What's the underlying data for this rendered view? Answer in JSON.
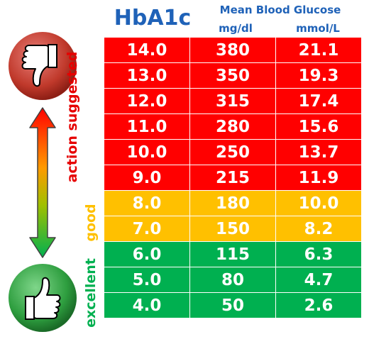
{
  "header": {
    "title": "HbA1c",
    "subtitle": "Mean Blood Glucose",
    "unit_mgdl": "mg/dl",
    "unit_mmol": "mmol/L"
  },
  "labels": {
    "action": "action suggested",
    "good": "good",
    "excellent": "excellent"
  },
  "icons": {
    "top": "thumbs-down-icon",
    "bottom": "thumbs-up-icon",
    "arrow": "double-arrow-icon"
  },
  "colors": {
    "action": "#ff0000",
    "good": "#ffc000",
    "excellent": "#00b050",
    "header": "#1f62b8"
  },
  "rows": [
    {
      "hba1c": "14.0",
      "mgdl": "380",
      "mmol": "21.1",
      "zone": "action"
    },
    {
      "hba1c": "13.0",
      "mgdl": "350",
      "mmol": "19.3",
      "zone": "action"
    },
    {
      "hba1c": "12.0",
      "mgdl": "315",
      "mmol": "17.4",
      "zone": "action"
    },
    {
      "hba1c": "11.0",
      "mgdl": "280",
      "mmol": "15.6",
      "zone": "action"
    },
    {
      "hba1c": "10.0",
      "mgdl": "250",
      "mmol": "13.7",
      "zone": "action"
    },
    {
      "hba1c": "9.0",
      "mgdl": "215",
      "mmol": "11.9",
      "zone": "action"
    },
    {
      "hba1c": "8.0",
      "mgdl": "180",
      "mmol": "10.0",
      "zone": "good"
    },
    {
      "hba1c": "7.0",
      "mgdl": "150",
      "mmol": "8.2",
      "zone": "good"
    },
    {
      "hba1c": "6.0",
      "mgdl": "115",
      "mmol": "6.3",
      "zone": "excellent"
    },
    {
      "hba1c": "5.0",
      "mgdl": "80",
      "mmol": "4.7",
      "zone": "excellent"
    },
    {
      "hba1c": "4.0",
      "mgdl": "50",
      "mmol": "2.6",
      "zone": "excellent"
    }
  ]
}
